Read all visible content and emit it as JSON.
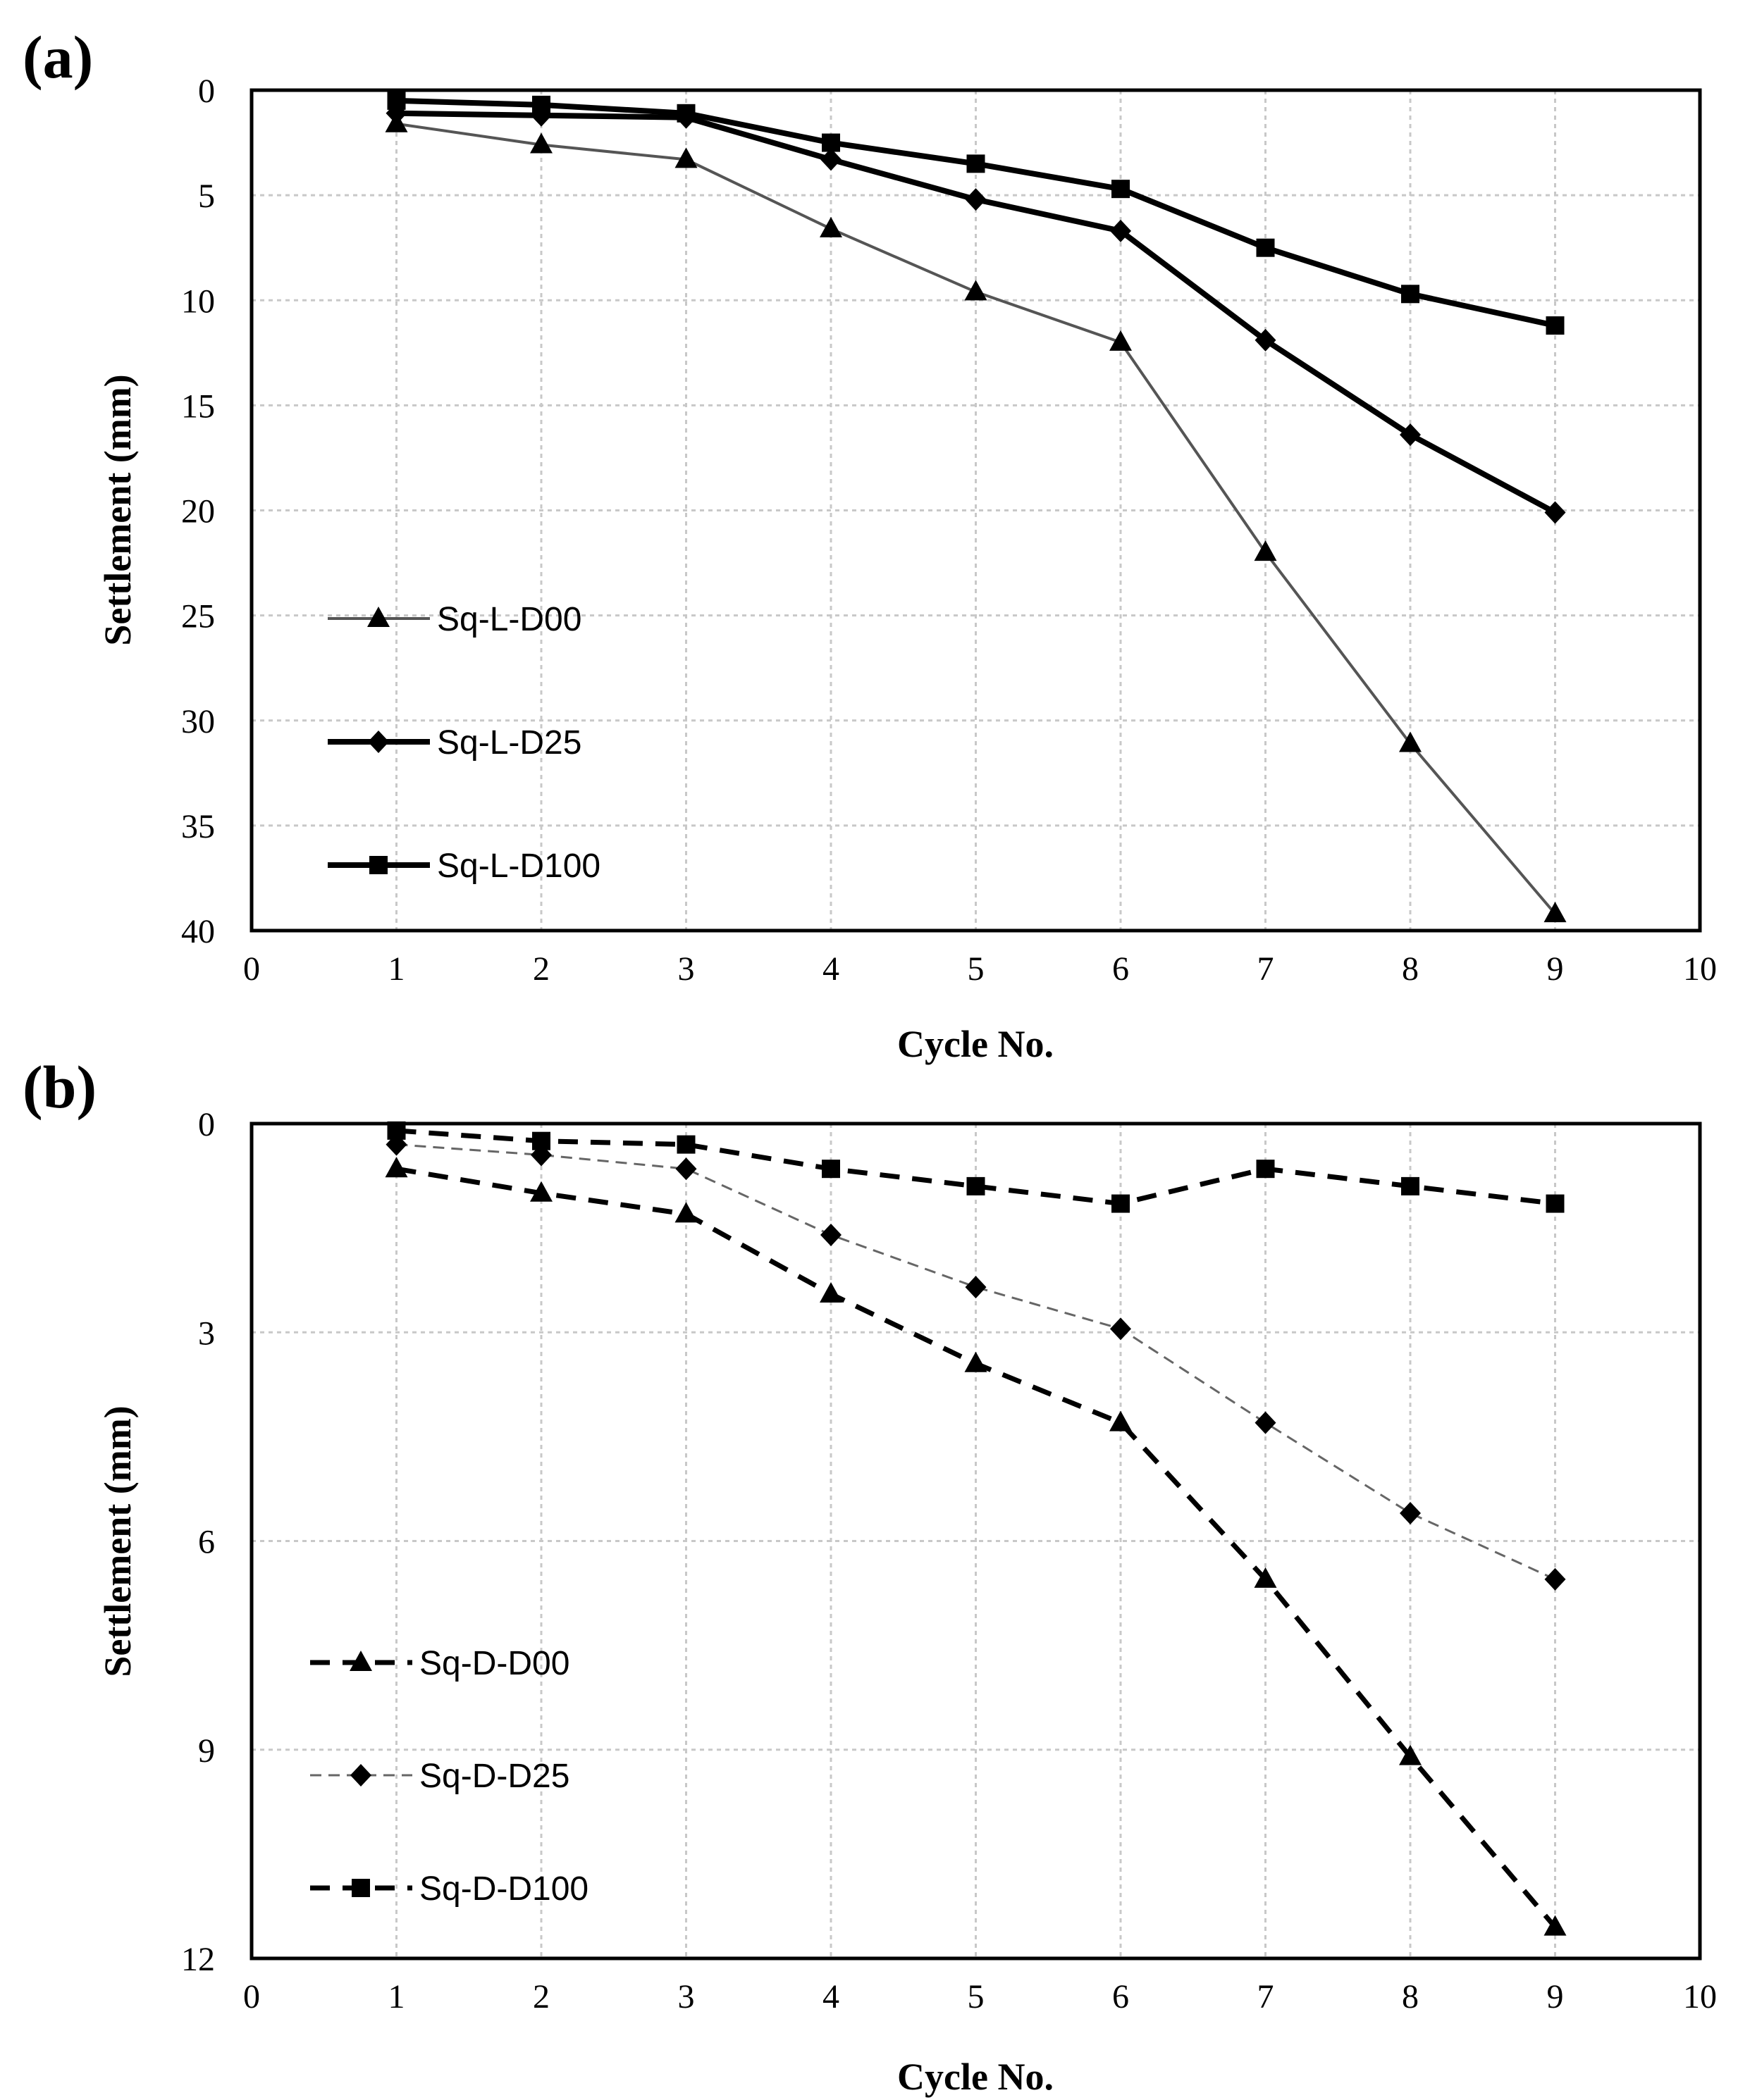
{
  "chart_data": [
    {
      "type": "line",
      "panel_label": "(a)",
      "xlabel": "Cycle No.",
      "ylabel": "Settlement (mm)",
      "xlim": [
        0,
        10
      ],
      "ylim": [
        0,
        40
      ],
      "y_inverted": true,
      "grid": true,
      "legend_position": "left",
      "xticks": [
        "0",
        "1",
        "2",
        "3",
        "4",
        "5",
        "6",
        "7",
        "8",
        "9",
        "10"
      ],
      "yticks": [
        "0",
        "5",
        "10",
        "15",
        "20",
        "25",
        "30",
        "35",
        "40"
      ],
      "x": [
        1,
        2,
        3,
        4,
        5,
        6,
        7,
        8,
        9
      ],
      "series": [
        {
          "name": "Sq-L-D00",
          "marker": "triangle",
          "line": "thin",
          "values": [
            1.6,
            2.6,
            3.3,
            6.6,
            9.6,
            12.0,
            22.0,
            31.1,
            39.2
          ]
        },
        {
          "name": "Sq-L-D25",
          "marker": "diamond",
          "line": "solid",
          "values": [
            1.1,
            1.2,
            1.3,
            3.3,
            5.2,
            6.7,
            11.9,
            16.4,
            20.1
          ]
        },
        {
          "name": "Sq-L-D100",
          "marker": "square",
          "line": "solid",
          "values": [
            0.5,
            0.7,
            1.1,
            2.5,
            3.5,
            4.7,
            7.5,
            9.7,
            11.2
          ]
        }
      ]
    },
    {
      "type": "line",
      "panel_label": "(b)",
      "xlabel": "Cycle No.",
      "ylabel": "Settlement (mm)",
      "xlim": [
        0,
        10
      ],
      "ylim": [
        0,
        12
      ],
      "y_inverted": true,
      "grid": true,
      "legend_position": "left",
      "xticks": [
        "0",
        "1",
        "2",
        "3",
        "4",
        "5",
        "6",
        "7",
        "8",
        "9",
        "10"
      ],
      "yticks": [
        "0",
        "3",
        "6",
        "9",
        "12"
      ],
      "x": [
        1,
        2,
        3,
        4,
        5,
        6,
        7,
        8,
        9
      ],
      "series": [
        {
          "name": "Sq-D-D00",
          "marker": "triangle",
          "line": "dashed",
          "values": [
            0.65,
            1.0,
            1.3,
            2.45,
            3.45,
            4.3,
            6.55,
            9.1,
            11.55
          ]
        },
        {
          "name": "Sq-D-D25",
          "marker": "diamond",
          "line": "thin-dashed",
          "values": [
            0.3,
            0.45,
            0.65,
            1.6,
            2.35,
            2.95,
            4.3,
            5.6,
            6.55
          ]
        },
        {
          "name": "Sq-D-D100",
          "marker": "square",
          "line": "dashed",
          "values": [
            0.1,
            0.25,
            0.3,
            0.65,
            0.9,
            1.15,
            0.65,
            0.9,
            1.15
          ]
        }
      ]
    }
  ]
}
